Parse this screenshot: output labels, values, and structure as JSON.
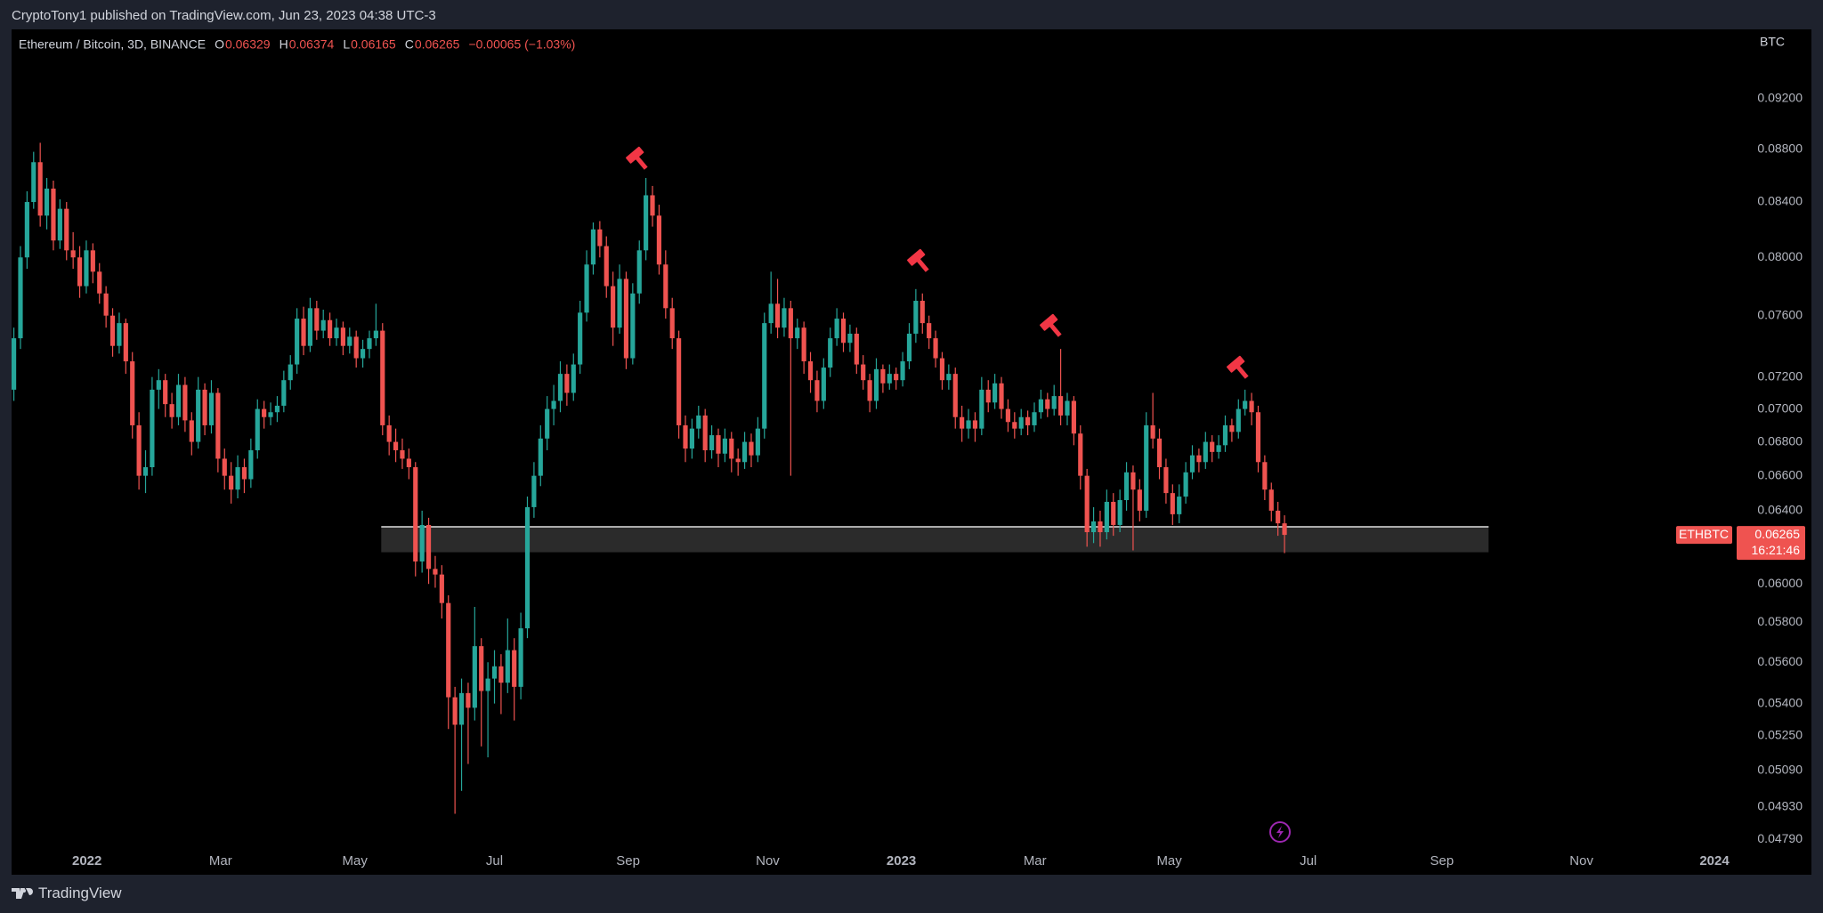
{
  "header": "CryptoTony1 published on TradingView.com, Jun 23, 2023 04:38 UTC-3",
  "footer": "TradingView",
  "chart_data": {
    "type": "candlestick",
    "title": "Ethereum / Bitcoin, 3D, BINANCE",
    "ohlc_labels": [
      "O",
      "H",
      "L",
      "C"
    ],
    "change": "−0.00065 (−1.03%)",
    "currency": "BTC",
    "symbol": "ETHBTC",
    "countdown": "16:21:46",
    "up_color": "#26a69a",
    "down_color": "#ef5350",
    "log_scale": true,
    "grid": false,
    "xlim": [
      -0.35,
      261
    ],
    "xticks": [
      {
        "value": 11.1,
        "label": "2022"
      },
      {
        "value": 31.4,
        "label": "Mar"
      },
      {
        "value": 51.8,
        "label": "May"
      },
      {
        "value": 73,
        "label": "Jul"
      },
      {
        "value": 93.3,
        "label": "Sep"
      },
      {
        "value": 114.5,
        "label": "Nov"
      },
      {
        "value": 134.8,
        "label": "2023"
      },
      {
        "value": 155.1,
        "label": "Mar"
      },
      {
        "value": 175.5,
        "label": "May"
      },
      {
        "value": 196.6,
        "label": "Jul"
      },
      {
        "value": 216.9,
        "label": "Sep"
      },
      {
        "value": 238.1,
        "label": "Nov"
      },
      {
        "value": 258.3,
        "label": "2024"
      }
    ],
    "ylim": [
      0.04644,
      0.0978
    ],
    "yticks": [
      {
        "value": 0.092,
        "label": "0.09200"
      },
      {
        "value": 0.088,
        "label": "0.08800"
      },
      {
        "value": 0.084,
        "label": "0.08400"
      },
      {
        "value": 0.08,
        "label": "0.08000"
      },
      {
        "value": 0.076,
        "label": "0.07600"
      },
      {
        "value": 0.072,
        "label": "0.07200"
      },
      {
        "value": 0.07,
        "label": "0.07000"
      },
      {
        "value": 0.068,
        "label": "0.06800"
      },
      {
        "value": 0.066,
        "label": "0.06600"
      },
      {
        "value": 0.064,
        "label": "0.06400"
      },
      {
        "value": 0.06,
        "label": "0.06000"
      },
      {
        "value": 0.058,
        "label": "0.05800"
      },
      {
        "value": 0.056,
        "label": "0.05600"
      },
      {
        "value": 0.054,
        "label": "0.05400"
      },
      {
        "value": 0.0525,
        "label": "0.05250"
      },
      {
        "value": 0.0509,
        "label": "0.05090"
      },
      {
        "value": 0.0493,
        "label": "0.04930"
      },
      {
        "value": 0.0479,
        "label": "0.04790"
      }
    ],
    "zone": {
      "top": 0.0631,
      "bottom": 0.0617,
      "x": [
        55.8,
        224
      ]
    },
    "candles": [
      [
        0.0712,
        0.0752,
        0.0705,
        0.0745
      ],
      [
        0.0745,
        0.0808,
        0.0738,
        0.08
      ],
      [
        0.08,
        0.0848,
        0.0792,
        0.084
      ],
      [
        0.084,
        0.0878,
        0.0835,
        0.087
      ],
      [
        0.087,
        0.0885,
        0.0822,
        0.083
      ],
      [
        0.083,
        0.0858,
        0.082,
        0.085
      ],
      [
        0.085,
        0.0856,
        0.0805,
        0.0812
      ],
      [
        0.0812,
        0.0842,
        0.0806,
        0.0835
      ],
      [
        0.0835,
        0.084,
        0.0798,
        0.0805
      ],
      [
        0.0805,
        0.0818,
        0.0792,
        0.08
      ],
      [
        0.08,
        0.0808,
        0.0772,
        0.078
      ],
      [
        0.078,
        0.0812,
        0.0775,
        0.0805
      ],
      [
        0.0805,
        0.081,
        0.0782,
        0.079
      ],
      [
        0.079,
        0.0796,
        0.0768,
        0.0775
      ],
      [
        0.0775,
        0.078,
        0.0752,
        0.076
      ],
      [
        0.076,
        0.0765,
        0.0733,
        0.074
      ],
      [
        0.074,
        0.0762,
        0.0735,
        0.0755
      ],
      [
        0.0755,
        0.0758,
        0.0722,
        0.073
      ],
      [
        0.073,
        0.0736,
        0.0682,
        0.069
      ],
      [
        0.069,
        0.0698,
        0.0652,
        0.066
      ],
      [
        0.066,
        0.0675,
        0.065,
        0.0665
      ],
      [
        0.0665,
        0.072,
        0.066,
        0.0712
      ],
      [
        0.0712,
        0.0725,
        0.07,
        0.0718
      ],
      [
        0.0718,
        0.0722,
        0.0695,
        0.0703
      ],
      [
        0.0703,
        0.071,
        0.0688,
        0.0695
      ],
      [
        0.0695,
        0.0722,
        0.069,
        0.0715
      ],
      [
        0.0715,
        0.072,
        0.0686,
        0.0693
      ],
      [
        0.0693,
        0.0698,
        0.0672,
        0.068
      ],
      [
        0.068,
        0.072,
        0.0676,
        0.0712
      ],
      [
        0.0712,
        0.0716,
        0.0684,
        0.069
      ],
      [
        0.069,
        0.0718,
        0.0685,
        0.071
      ],
      [
        0.071,
        0.0713,
        0.0662,
        0.067
      ],
      [
        0.067,
        0.0676,
        0.0652,
        0.066
      ],
      [
        0.066,
        0.0668,
        0.0644,
        0.0652
      ],
      [
        0.0652,
        0.0672,
        0.0647,
        0.0665
      ],
      [
        0.0665,
        0.067,
        0.065,
        0.0658
      ],
      [
        0.0658,
        0.0682,
        0.0653,
        0.0675
      ],
      [
        0.0675,
        0.0706,
        0.067,
        0.07
      ],
      [
        0.07,
        0.0705,
        0.0688,
        0.0695
      ],
      [
        0.0695,
        0.0704,
        0.069,
        0.0698
      ],
      [
        0.0698,
        0.0708,
        0.0692,
        0.0702
      ],
      [
        0.0702,
        0.0724,
        0.0698,
        0.0718
      ],
      [
        0.0718,
        0.0734,
        0.0712,
        0.0728
      ],
      [
        0.0728,
        0.0765,
        0.0722,
        0.0758
      ],
      [
        0.0758,
        0.0766,
        0.0734,
        0.074
      ],
      [
        0.074,
        0.0772,
        0.0736,
        0.0765
      ],
      [
        0.0765,
        0.077,
        0.0744,
        0.075
      ],
      [
        0.075,
        0.0764,
        0.0745,
        0.0757
      ],
      [
        0.0757,
        0.0762,
        0.074,
        0.0745
      ],
      [
        0.0745,
        0.0758,
        0.074,
        0.0752
      ],
      [
        0.0752,
        0.0756,
        0.0734,
        0.074
      ],
      [
        0.074,
        0.0752,
        0.0735,
        0.0746
      ],
      [
        0.0746,
        0.075,
        0.0726,
        0.0732
      ],
      [
        0.0732,
        0.0744,
        0.0726,
        0.0738
      ],
      [
        0.0738,
        0.075,
        0.0732,
        0.0745
      ],
      [
        0.0745,
        0.0768,
        0.074,
        0.075
      ],
      [
        0.075,
        0.0755,
        0.0684,
        0.069
      ],
      [
        0.069,
        0.0696,
        0.0672,
        0.068
      ],
      [
        0.068,
        0.0688,
        0.0668,
        0.0675
      ],
      [
        0.0675,
        0.0682,
        0.0664,
        0.067
      ],
      [
        0.067,
        0.0676,
        0.0658,
        0.0665
      ],
      [
        0.0665,
        0.0668,
        0.0604,
        0.0612
      ],
      [
        0.0612,
        0.064,
        0.0606,
        0.0632
      ],
      [
        0.0632,
        0.0636,
        0.06,
        0.0608
      ],
      [
        0.0608,
        0.0615,
        0.0598,
        0.0605
      ],
      [
        0.0605,
        0.061,
        0.0582,
        0.059
      ],
      [
        0.059,
        0.0594,
        0.0528,
        0.0543
      ],
      [
        0.0543,
        0.0548,
        0.049,
        0.053
      ],
      [
        0.053,
        0.0552,
        0.05,
        0.0545
      ],
      [
        0.0545,
        0.055,
        0.0512,
        0.0538
      ],
      [
        0.0538,
        0.0588,
        0.0532,
        0.0568
      ],
      [
        0.0568,
        0.0572,
        0.052,
        0.0546
      ],
      [
        0.0546,
        0.056,
        0.0515,
        0.0552
      ],
      [
        0.0552,
        0.0566,
        0.054,
        0.0558
      ],
      [
        0.0558,
        0.0564,
        0.0535,
        0.055
      ],
      [
        0.055,
        0.0582,
        0.0545,
        0.0566
      ],
      [
        0.0566,
        0.0572,
        0.0532,
        0.0548
      ],
      [
        0.0548,
        0.0585,
        0.0542,
        0.0577
      ],
      [
        0.0577,
        0.0648,
        0.0572,
        0.0642
      ],
      [
        0.0642,
        0.0668,
        0.0636,
        0.066
      ],
      [
        0.066,
        0.069,
        0.0654,
        0.0682
      ],
      [
        0.0682,
        0.0708,
        0.0675,
        0.07
      ],
      [
        0.07,
        0.0715,
        0.069,
        0.0705
      ],
      [
        0.0705,
        0.073,
        0.0698,
        0.0722
      ],
      [
        0.0722,
        0.0728,
        0.0702,
        0.071
      ],
      [
        0.071,
        0.0735,
        0.0705,
        0.0728
      ],
      [
        0.0728,
        0.077,
        0.0722,
        0.0762
      ],
      [
        0.0762,
        0.0805,
        0.0756,
        0.0795
      ],
      [
        0.0795,
        0.0825,
        0.0788,
        0.082
      ],
      [
        0.082,
        0.0826,
        0.08,
        0.0808
      ],
      [
        0.0808,
        0.0815,
        0.0772,
        0.078
      ],
      [
        0.078,
        0.079,
        0.074,
        0.0752
      ],
      [
        0.0752,
        0.0795,
        0.0748,
        0.0785
      ],
      [
        0.0785,
        0.079,
        0.0725,
        0.0732
      ],
      [
        0.0732,
        0.0782,
        0.0728,
        0.0775
      ],
      [
        0.0775,
        0.0812,
        0.0768,
        0.0805
      ],
      [
        0.0805,
        0.0858,
        0.0798,
        0.0845
      ],
      [
        0.0845,
        0.0852,
        0.0822,
        0.083
      ],
      [
        0.083,
        0.0838,
        0.0788,
        0.0795
      ],
      [
        0.0795,
        0.0805,
        0.0758,
        0.0765
      ],
      [
        0.0765,
        0.0772,
        0.0738,
        0.0745
      ],
      [
        0.0745,
        0.075,
        0.0682,
        0.069
      ],
      [
        0.069,
        0.0696,
        0.0668,
        0.0676
      ],
      [
        0.0676,
        0.0694,
        0.067,
        0.0688
      ],
      [
        0.0688,
        0.0702,
        0.0682,
        0.0696
      ],
      [
        0.0696,
        0.07,
        0.0668,
        0.0675
      ],
      [
        0.0675,
        0.069,
        0.067,
        0.0684
      ],
      [
        0.0684,
        0.0688,
        0.0665,
        0.0673
      ],
      [
        0.0673,
        0.0688,
        0.0668,
        0.0682
      ],
      [
        0.0682,
        0.0686,
        0.0662,
        0.067
      ],
      [
        0.067,
        0.0676,
        0.066,
        0.0668
      ],
      [
        0.0668,
        0.0686,
        0.0664,
        0.068
      ],
      [
        0.068,
        0.0685,
        0.0665,
        0.0672
      ],
      [
        0.0672,
        0.0695,
        0.0668,
        0.0688
      ],
      [
        0.0688,
        0.0762,
        0.0682,
        0.0755
      ],
      [
        0.0755,
        0.079,
        0.0748,
        0.0768
      ],
      [
        0.0768,
        0.0785,
        0.0745,
        0.0752
      ],
      [
        0.0752,
        0.0772,
        0.0746,
        0.0765
      ],
      [
        0.0765,
        0.077,
        0.066,
        0.0745
      ],
      [
        0.0745,
        0.0758,
        0.0738,
        0.0752
      ],
      [
        0.0752,
        0.0756,
        0.0722,
        0.073
      ],
      [
        0.073,
        0.0736,
        0.071,
        0.0718
      ],
      [
        0.0718,
        0.0724,
        0.0698,
        0.0705
      ],
      [
        0.0705,
        0.0732,
        0.07,
        0.0726
      ],
      [
        0.0726,
        0.0752,
        0.072,
        0.0745
      ],
      [
        0.0745,
        0.0765,
        0.074,
        0.0758
      ],
      [
        0.0758,
        0.0762,
        0.0736,
        0.0742
      ],
      [
        0.0742,
        0.0754,
        0.0736,
        0.0748
      ],
      [
        0.0748,
        0.0752,
        0.0722,
        0.0728
      ],
      [
        0.0728,
        0.0734,
        0.0712,
        0.0718
      ],
      [
        0.0718,
        0.0722,
        0.0698,
        0.0705
      ],
      [
        0.0705,
        0.0732,
        0.07,
        0.0725
      ],
      [
        0.0725,
        0.0728,
        0.071,
        0.0716
      ],
      [
        0.0716,
        0.0728,
        0.0712,
        0.0722
      ],
      [
        0.0722,
        0.0726,
        0.0712,
        0.0718
      ],
      [
        0.0718,
        0.0736,
        0.0714,
        0.073
      ],
      [
        0.073,
        0.0755,
        0.0725,
        0.0748
      ],
      [
        0.0748,
        0.0778,
        0.0742,
        0.077
      ],
      [
        0.077,
        0.0775,
        0.0748,
        0.0755
      ],
      [
        0.0755,
        0.076,
        0.0738,
        0.0745
      ],
      [
        0.0745,
        0.075,
        0.0726,
        0.0732
      ],
      [
        0.0732,
        0.0736,
        0.0712,
        0.0718
      ],
      [
        0.0718,
        0.0728,
        0.0712,
        0.0722
      ],
      [
        0.0722,
        0.0726,
        0.0688,
        0.0695
      ],
      [
        0.0695,
        0.0702,
        0.068,
        0.0688
      ],
      [
        0.0688,
        0.07,
        0.0682,
        0.0693
      ],
      [
        0.0693,
        0.0698,
        0.068,
        0.0688
      ],
      [
        0.0688,
        0.072,
        0.0684,
        0.0712
      ],
      [
        0.0712,
        0.0718,
        0.0698,
        0.0704
      ],
      [
        0.0704,
        0.0722,
        0.07,
        0.0716
      ],
      [
        0.0716,
        0.072,
        0.0694,
        0.07
      ],
      [
        0.07,
        0.0706,
        0.0686,
        0.0692
      ],
      [
        0.0692,
        0.0698,
        0.0682,
        0.0688
      ],
      [
        0.0688,
        0.07,
        0.0684,
        0.0695
      ],
      [
        0.0695,
        0.0699,
        0.0684,
        0.069
      ],
      [
        0.069,
        0.0704,
        0.0686,
        0.0698
      ],
      [
        0.0698,
        0.0712,
        0.0694,
        0.0706
      ],
      [
        0.0706,
        0.071,
        0.0695,
        0.07
      ],
      [
        0.07,
        0.0715,
        0.0696,
        0.0708
      ],
      [
        0.0708,
        0.0738,
        0.069,
        0.0696
      ],
      [
        0.0696,
        0.071,
        0.069,
        0.0705
      ],
      [
        0.0705,
        0.0708,
        0.0678,
        0.0685
      ],
      [
        0.0685,
        0.069,
        0.0652,
        0.066
      ],
      [
        0.066,
        0.0664,
        0.062,
        0.0628
      ],
      [
        0.0628,
        0.0642,
        0.0622,
        0.0634
      ],
      [
        0.0634,
        0.064,
        0.062,
        0.0628
      ],
      [
        0.0628,
        0.0652,
        0.0624,
        0.0645
      ],
      [
        0.0645,
        0.065,
        0.0626,
        0.0632
      ],
      [
        0.0632,
        0.0652,
        0.0628,
        0.0646
      ],
      [
        0.0646,
        0.0668,
        0.064,
        0.0662
      ],
      [
        0.0662,
        0.0666,
        0.0618,
        0.0652
      ],
      [
        0.0652,
        0.0658,
        0.0634,
        0.064
      ],
      [
        0.064,
        0.0698,
        0.0636,
        0.069
      ],
      [
        0.069,
        0.071,
        0.0676,
        0.0682
      ],
      [
        0.0682,
        0.0688,
        0.0658,
        0.0665
      ],
      [
        0.0665,
        0.067,
        0.0644,
        0.065
      ],
      [
        0.065,
        0.0655,
        0.0632,
        0.0638
      ],
      [
        0.0638,
        0.0655,
        0.0633,
        0.0648
      ],
      [
        0.0648,
        0.0668,
        0.0644,
        0.0662
      ],
      [
        0.0662,
        0.0678,
        0.0658,
        0.0672
      ],
      [
        0.0672,
        0.0676,
        0.0662,
        0.0668
      ],
      [
        0.0668,
        0.0686,
        0.0664,
        0.068
      ],
      [
        0.068,
        0.0684,
        0.0668,
        0.0674
      ],
      [
        0.0674,
        0.0684,
        0.067,
        0.0678
      ],
      [
        0.0678,
        0.0696,
        0.0674,
        0.069
      ],
      [
        0.069,
        0.0694,
        0.068,
        0.0686
      ],
      [
        0.0686,
        0.0706,
        0.0682,
        0.07
      ],
      [
        0.07,
        0.0712,
        0.0696,
        0.0705
      ],
      [
        0.0705,
        0.071,
        0.069,
        0.0698
      ],
      [
        0.0698,
        0.0702,
        0.0662,
        0.0668
      ],
      [
        0.0668,
        0.0672,
        0.0646,
        0.0652
      ],
      [
        0.0652,
        0.0656,
        0.0634,
        0.064
      ],
      [
        0.064,
        0.0645,
        0.0626,
        0.06329
      ],
      [
        0.06329,
        0.06374,
        0.06165,
        0.06265
      ]
    ]
  }
}
